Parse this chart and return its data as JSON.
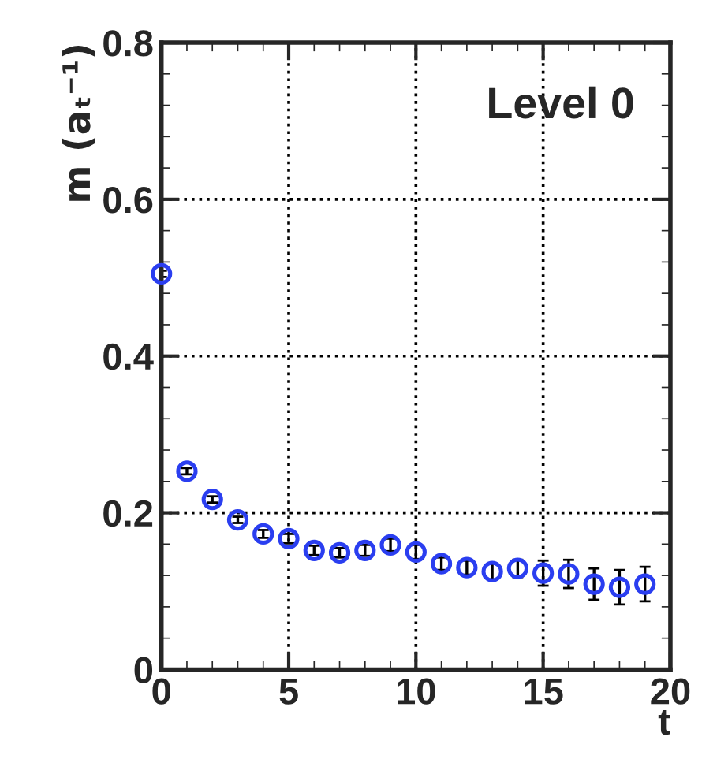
{
  "chart_data": {
    "type": "scatter",
    "xlabel": "t",
    "ylabel": "m (aₜ⁻¹)",
    "annotations": [
      "Level 0"
    ],
    "x": [
      0,
      1,
      2,
      3,
      4,
      5,
      6,
      7,
      8,
      9,
      10,
      11,
      12,
      13,
      14,
      15,
      16,
      17,
      18,
      19
    ],
    "series": [
      {
        "color": "#2a3ef0",
        "values": [
          0.505,
          0.253,
          0.217,
          0.191,
          0.173,
          0.167,
          0.152,
          0.149,
          0.152,
          0.159,
          0.15,
          0.135,
          0.13,
          0.125,
          0.129,
          0.123,
          0.122,
          0.109,
          0.105,
          0.109
        ],
        "errors": [
          0.004,
          0.004,
          0.004,
          0.004,
          0.005,
          0.006,
          0.006,
          0.006,
          0.007,
          0.008,
          0.009,
          0.008,
          0.009,
          0.01,
          0.011,
          0.016,
          0.018,
          0.02,
          0.022,
          0.022
        ]
      }
    ],
    "marker": "circle",
    "grid": true,
    "xlim": [
      0,
      20
    ],
    "xticks": [
      0,
      5,
      10,
      15,
      20
    ],
    "ylim": [
      0,
      0.8
    ],
    "yticks": [
      0,
      0.2,
      0.4,
      0.6,
      0.8
    ]
  }
}
